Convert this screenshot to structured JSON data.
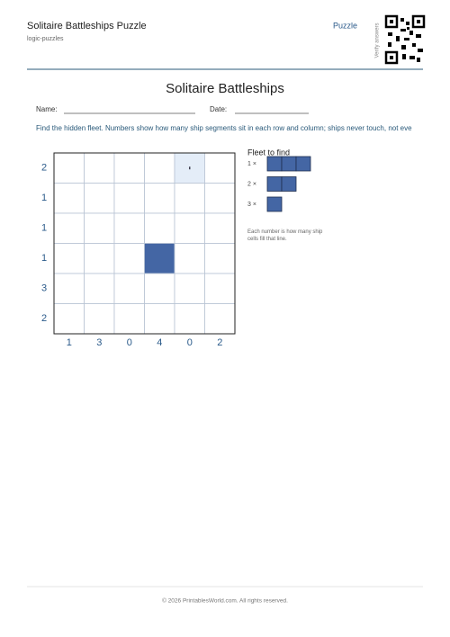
{
  "header": {
    "title": "Solitaire Battleships Puzzle",
    "subtitle": "logic-puzzles",
    "link": "Puzzle",
    "verify": "Verify answers"
  },
  "worksheet": {
    "title": "Solitaire Battleships",
    "name_label": "Name:",
    "date_label": "Date:",
    "instructions": "Find the hidden fleet. Numbers show how many ship segments sit in each row and column; ships never touch, not eve"
  },
  "puzzle": {
    "row_clues": [
      2,
      1,
      1,
      1,
      3,
      2
    ],
    "column_clues": [
      1,
      3,
      0,
      4,
      0,
      2
    ],
    "cells": [
      [
        "",
        "",
        "",
        "",
        "hint",
        ""
      ],
      [
        "",
        "",
        "",
        "",
        "",
        ""
      ],
      [
        "",
        "",
        "",
        "",
        "",
        ""
      ],
      [
        "",
        "",
        "",
        "ship",
        "",
        ""
      ],
      [
        "",
        "",
        "",
        "",
        "",
        ""
      ],
      [
        "",
        "",
        "",
        "",
        "",
        ""
      ]
    ]
  },
  "fleet": {
    "title": "Fleet to find",
    "ships": [
      {
        "label": "1 ×",
        "size": 3
      },
      {
        "label": "2 ×",
        "size": 2
      },
      {
        "label": "3 ×",
        "size": 1
      }
    ],
    "note": "Each number is how many ship cells fill that line."
  },
  "footer": {
    "text": "© 2026 PrintablesWorld.com. All rights reserved."
  }
}
